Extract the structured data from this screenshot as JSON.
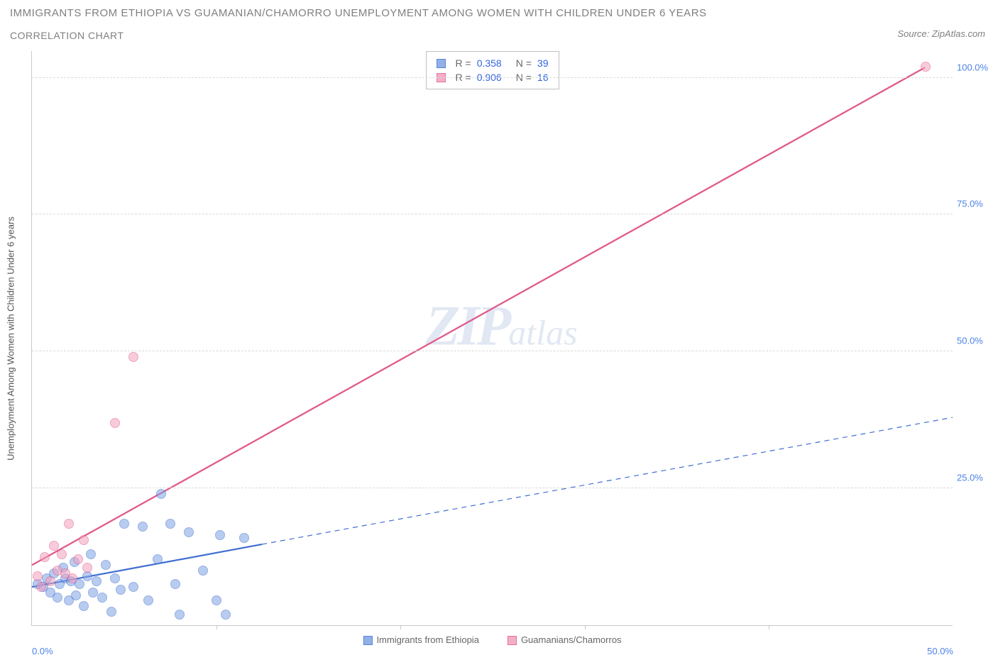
{
  "title": "IMMIGRANTS FROM ETHIOPIA VS GUAMANIAN/CHAMORRO UNEMPLOYMENT AMONG WOMEN WITH CHILDREN UNDER 6 YEARS",
  "subtitle": "CORRELATION CHART",
  "source": "Source: ZipAtlas.com",
  "watermark_big": "ZIP",
  "watermark_small": "atlas",
  "chart": {
    "type": "scatter",
    "ylabel": "Unemployment Among Women with Children Under 6 years",
    "background_color": "#ffffff",
    "grid_color": "#d9d9d9",
    "axis_color": "#c9c9c9",
    "tick_label_color": "#4d82e6",
    "xlim": [
      0,
      50
    ],
    "ylim": [
      0,
      105
    ],
    "xtick_step": 10,
    "ytick_step": 25,
    "ytick_min": 25,
    "xtick_label_pos": [
      0,
      50
    ],
    "xtick_label_text": [
      "0.0%",
      "50.0%"
    ],
    "point_radius": 7,
    "point_border_width": 1.2,
    "point_fill_opacity": 0.3,
    "series": [
      {
        "key": "ethiopia",
        "label": "Immigrants from Ethiopia",
        "R": "0.358",
        "N": "39",
        "color_border": "#3f6ed1",
        "color_fill": "#7fa3e3",
        "trend": {
          "x1": 0.0,
          "y1": 7.0,
          "x2_solid": 12.5,
          "y2_solid": 14.8,
          "x2_dash": 50.0,
          "y2_dash": 38.0,
          "stroke_width": 2.2
        },
        "points": [
          {
            "x": 0.3,
            "y": 7.5
          },
          {
            "x": 0.6,
            "y": 7.0
          },
          {
            "x": 0.8,
            "y": 8.5
          },
          {
            "x": 1.0,
            "y": 6.0
          },
          {
            "x": 1.2,
            "y": 9.5
          },
          {
            "x": 1.4,
            "y": 5.0
          },
          {
            "x": 1.5,
            "y": 7.5
          },
          {
            "x": 1.7,
            "y": 10.5
          },
          {
            "x": 1.8,
            "y": 8.5
          },
          {
            "x": 2.0,
            "y": 4.5
          },
          {
            "x": 2.1,
            "y": 8.0
          },
          {
            "x": 2.3,
            "y": 11.5
          },
          {
            "x": 2.4,
            "y": 5.5
          },
          {
            "x": 2.6,
            "y": 7.5
          },
          {
            "x": 2.8,
            "y": 3.5
          },
          {
            "x": 3.0,
            "y": 9.0
          },
          {
            "x": 3.2,
            "y": 13.0
          },
          {
            "x": 3.3,
            "y": 6.0
          },
          {
            "x": 3.5,
            "y": 8.0
          },
          {
            "x": 3.8,
            "y": 5.0
          },
          {
            "x": 4.0,
            "y": 11.0
          },
          {
            "x": 4.3,
            "y": 2.5
          },
          {
            "x": 4.5,
            "y": 8.5
          },
          {
            "x": 4.8,
            "y": 6.5
          },
          {
            "x": 5.0,
            "y": 18.5
          },
          {
            "x": 5.5,
            "y": 7.0
          },
          {
            "x": 6.0,
            "y": 18.0
          },
          {
            "x": 6.3,
            "y": 4.5
          },
          {
            "x": 6.8,
            "y": 12.0
          },
          {
            "x": 7.0,
            "y": 24.0
          },
          {
            "x": 7.5,
            "y": 18.5
          },
          {
            "x": 7.8,
            "y": 7.5
          },
          {
            "x": 8.0,
            "y": 2.0
          },
          {
            "x": 8.5,
            "y": 17.0
          },
          {
            "x": 9.3,
            "y": 10.0
          },
          {
            "x": 10.0,
            "y": 4.5
          },
          {
            "x": 10.2,
            "y": 16.5
          },
          {
            "x": 10.5,
            "y": 2.0
          },
          {
            "x": 11.5,
            "y": 16.0
          }
        ]
      },
      {
        "key": "guamanian",
        "label": "Guamanians/Chamorros",
        "R": "0.906",
        "N": "16",
        "color_border": "#e05a8b",
        "color_fill": "#f3a1be",
        "trend": {
          "x1": 0.0,
          "y1": 11.0,
          "x2_solid": 48.5,
          "y2_solid": 102.0,
          "x2_dash": 48.5,
          "y2_dash": 102.0,
          "stroke_width": 2.3
        },
        "points": [
          {
            "x": 0.3,
            "y": 9.0
          },
          {
            "x": 0.5,
            "y": 7.0
          },
          {
            "x": 0.7,
            "y": 12.5
          },
          {
            "x": 1.0,
            "y": 8.0
          },
          {
            "x": 1.2,
            "y": 14.5
          },
          {
            "x": 1.4,
            "y": 10.0
          },
          {
            "x": 1.6,
            "y": 13.0
          },
          {
            "x": 1.8,
            "y": 9.5
          },
          {
            "x": 2.0,
            "y": 18.5
          },
          {
            "x": 2.2,
            "y": 8.5
          },
          {
            "x": 2.5,
            "y": 12.0
          },
          {
            "x": 2.8,
            "y": 15.5
          },
          {
            "x": 3.0,
            "y": 10.5
          },
          {
            "x": 4.5,
            "y": 37.0
          },
          {
            "x": 5.5,
            "y": 49.0
          },
          {
            "x": 48.5,
            "y": 102.0
          }
        ]
      }
    ]
  }
}
